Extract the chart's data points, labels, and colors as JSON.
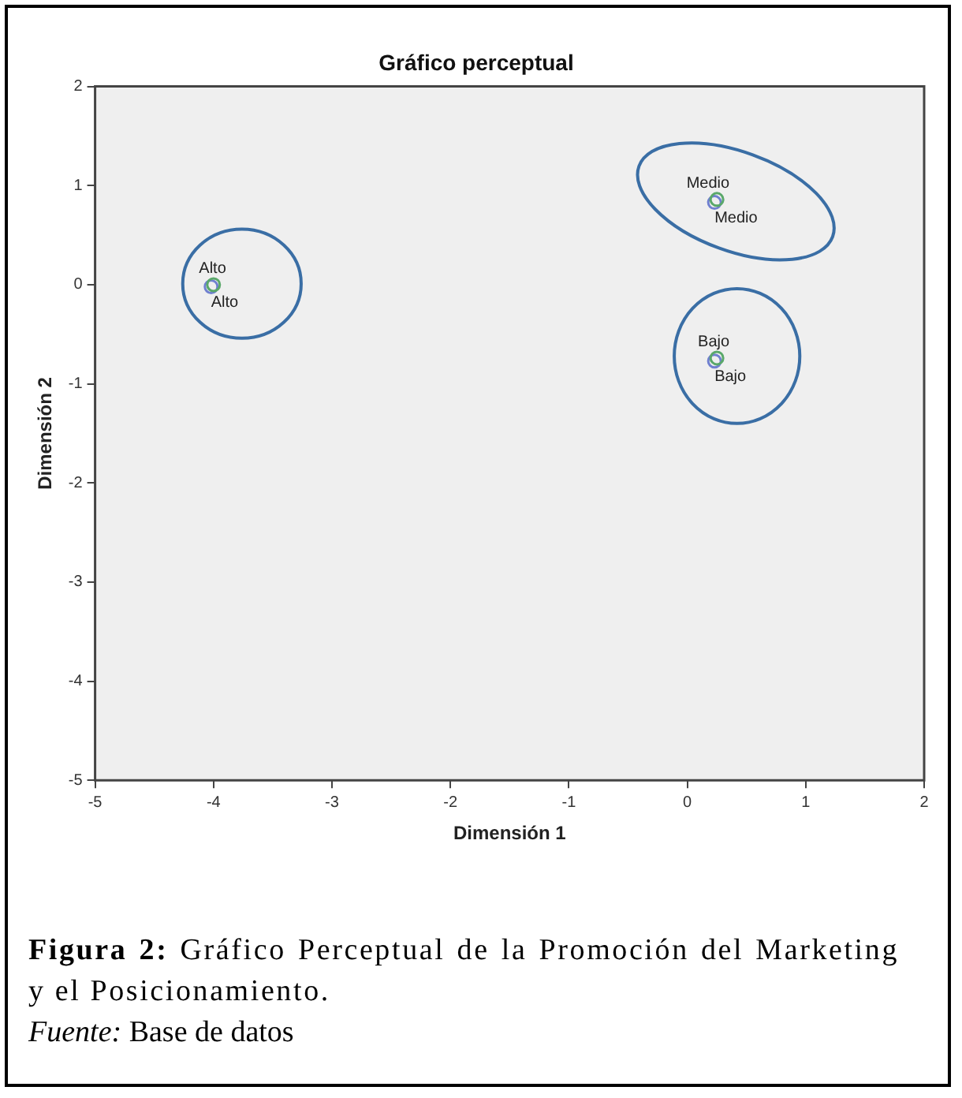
{
  "chart_data": {
    "type": "scatter",
    "title": "Gráfico perceptual",
    "xlabel": "Dimensión 1",
    "ylabel": "Dimensión 2",
    "xlim": [
      -5,
      2
    ],
    "xticks": [
      -5,
      -4,
      -3,
      -2,
      -1,
      0,
      1,
      2
    ],
    "ylim": [
      -5,
      2
    ],
    "yticks": [
      -5,
      -4,
      -3,
      -2,
      -1,
      0,
      1,
      2
    ],
    "grid": false,
    "legend": false,
    "marker": "circle",
    "series": [
      {
        "color": "#5aa86a",
        "x": [
          -4.0,
          0.25,
          0.25
        ],
        "values": [
          0.0,
          0.86,
          -0.74
        ],
        "value_labels": [
          "Alto",
          "Medio",
          "Bajo"
        ]
      },
      {
        "color": "#7080d0",
        "x": [
          -4.02,
          0.23,
          0.23
        ],
        "values": [
          -0.02,
          0.83,
          -0.77
        ],
        "value_labels": [
          "Alto",
          "Medio",
          "Bajo"
        ]
      }
    ],
    "annotations": [
      "Figura 2: Gráfico Perceptual de la Promoción del Marketing y el Posicionamiento.",
      "Fuente: Base de datos"
    ]
  }
}
